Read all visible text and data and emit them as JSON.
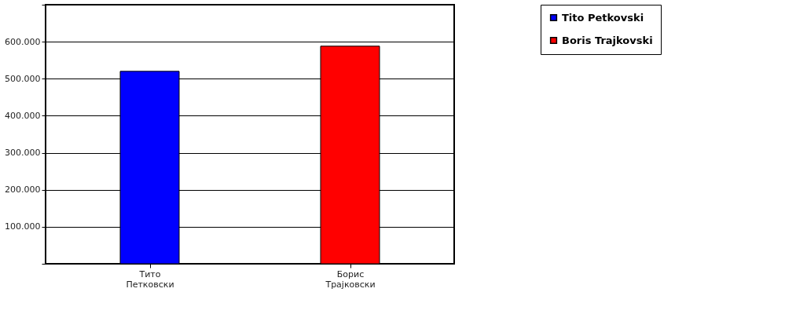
{
  "chart_data": {
    "type": "bar",
    "categories": [
      "Тито\nПетковски",
      "Борис\nТрајковски"
    ],
    "series": [
      {
        "name": "Tito Petkovski",
        "color": "#0000ff",
        "values": [
          520000,
          null
        ]
      },
      {
        "name": "Boris Trajkovski",
        "color": "#ff0000",
        "values": [
          null,
          588000
        ]
      }
    ],
    "ylim": [
      0,
      700000
    ],
    "yticks": [
      {
        "value": 0,
        "label": null
      },
      {
        "value": 100000,
        "label": "100.000"
      },
      {
        "value": 200000,
        "label": "200.000"
      },
      {
        "value": 300000,
        "label": "300.000"
      },
      {
        "value": 400000,
        "label": "400.000"
      },
      {
        "value": 500000,
        "label": "500.000"
      },
      {
        "value": 600000,
        "label": "600.000"
      },
      {
        "value": 700000,
        "label": null
      }
    ],
    "grid": "y",
    "legend": "right"
  }
}
